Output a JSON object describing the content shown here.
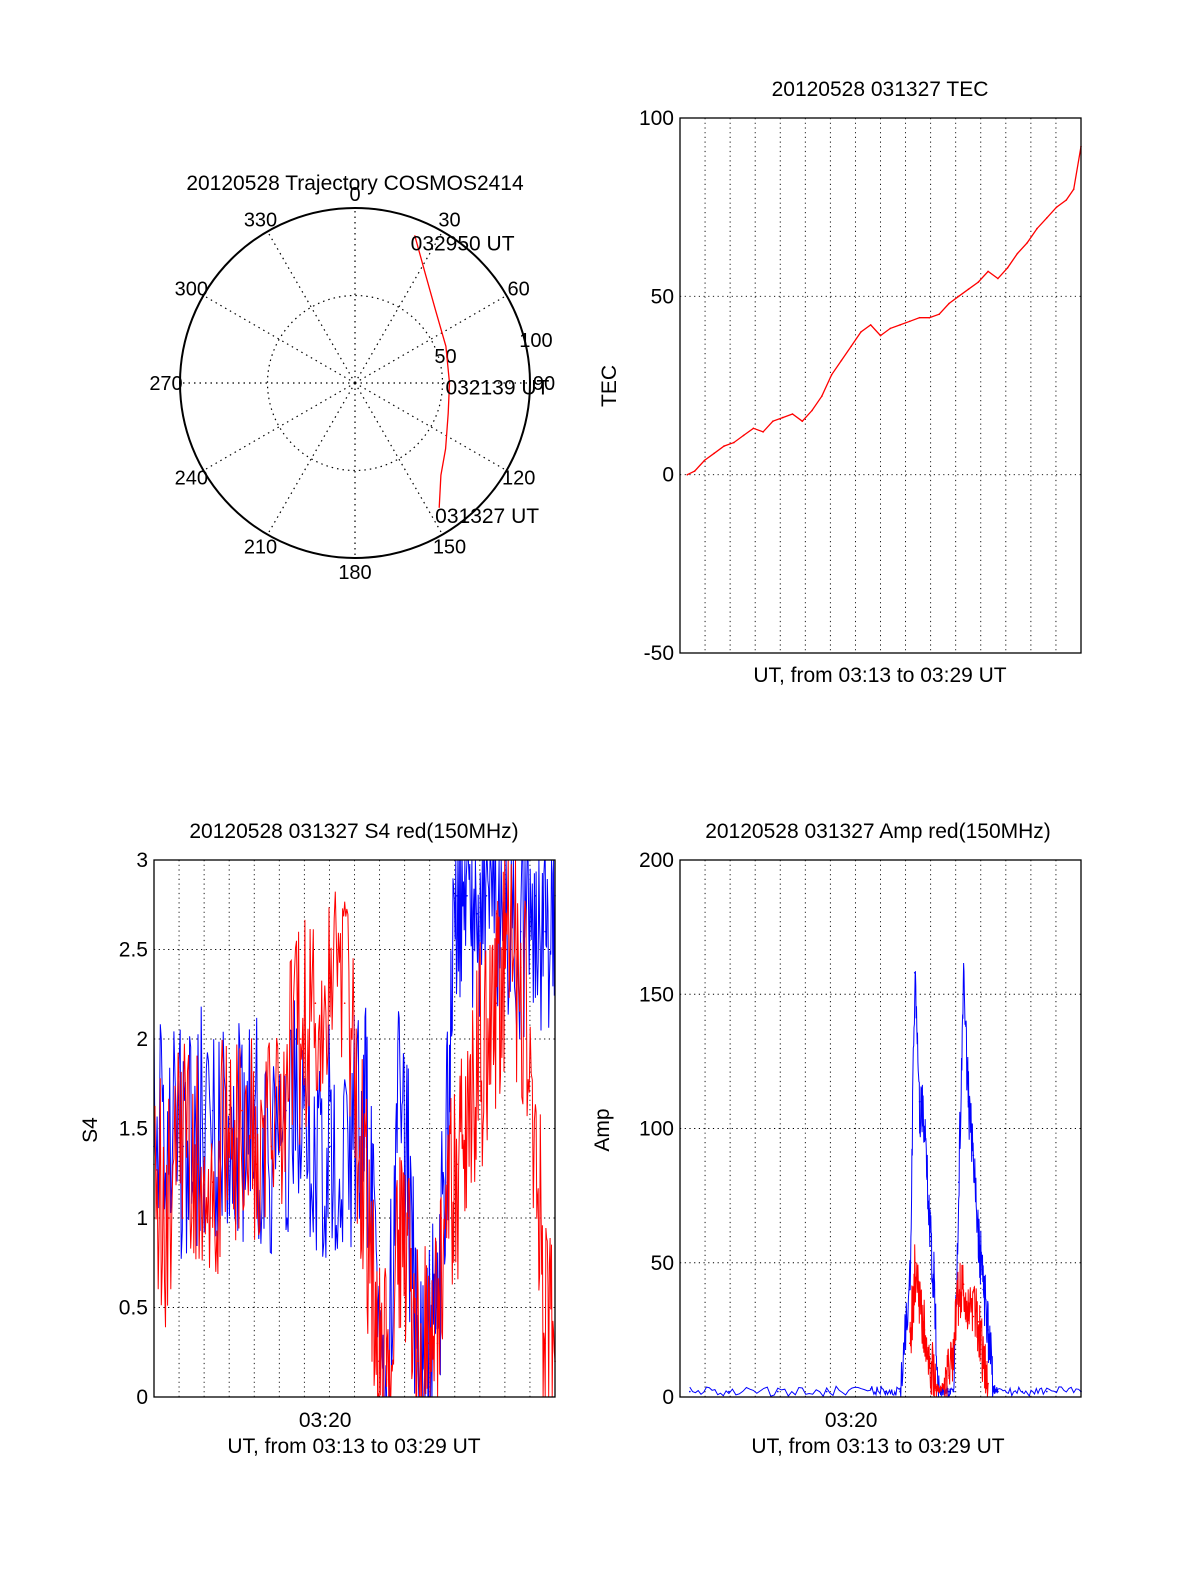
{
  "colors": {
    "red": "#ff0000",
    "blue": "#0000ff",
    "axis": "#000000",
    "grid": "#000000"
  },
  "chart_data": [
    {
      "type": "polar-trajectory",
      "title": "20120528 Trajectory COSMOS2414",
      "azimuth_labels": [
        "0",
        "30",
        "60",
        "90",
        "120",
        "150",
        "180",
        "210",
        "240",
        "270",
        "300",
        "330"
      ],
      "radius_labels": [
        "50",
        "100"
      ],
      "elevation_rings": [
        50,
        100
      ],
      "trajectory": [
        {
          "az": 22,
          "r": 91
        },
        {
          "az": 33,
          "r": 74
        },
        {
          "az": 48,
          "r": 62
        },
        {
          "az": 68,
          "r": 56
        },
        {
          "az": 90,
          "r": 54
        },
        {
          "az": 108,
          "r": 56
        },
        {
          "az": 126,
          "r": 64
        },
        {
          "az": 137,
          "r": 72
        },
        {
          "az": 146,
          "r": 86
        }
      ],
      "annotations": [
        {
          "text": "032950 UT",
          "az": 22,
          "r": 91
        },
        {
          "text": "032139 UT",
          "az": 88,
          "r": 54
        },
        {
          "text": "031327 UT",
          "az": 146,
          "r": 86
        }
      ]
    },
    {
      "type": "line",
      "title": "20120528 031327 TEC",
      "xlabel": "UT, from 03:13 to 03:29 UT",
      "ylabel": "TEC",
      "xlim": [
        0,
        16.4
      ],
      "ylim": [
        -50,
        100
      ],
      "yticks": [
        -50,
        0,
        50,
        100
      ],
      "xticks": [],
      "grid": true,
      "series": [
        {
          "color": "red",
          "x": [
            0.3,
            0.6,
            1.0,
            1.4,
            1.8,
            2.2,
            2.6,
            3.0,
            3.4,
            3.8,
            4.2,
            4.6,
            5.0,
            5.4,
            5.8,
            6.2,
            6.6,
            7.0,
            7.4,
            7.8,
            8.2,
            8.6,
            9.0,
            9.4,
            9.8,
            10.2,
            10.6,
            11.0,
            11.4,
            11.8,
            12.2,
            12.6,
            13.0,
            13.4,
            13.8,
            14.2,
            14.6,
            15.0,
            15.4,
            15.8,
            16.1,
            16.4
          ],
          "y": [
            0,
            1,
            4,
            6,
            8,
            9,
            11,
            13,
            12,
            15,
            16,
            17,
            15,
            18,
            22,
            28,
            32,
            36,
            40,
            42,
            39,
            41,
            42,
            43,
            44,
            44,
            45,
            48,
            50,
            52,
            54,
            57,
            55,
            58,
            62,
            65,
            69,
            72,
            75,
            77,
            80,
            92
          ]
        }
      ]
    },
    {
      "type": "line",
      "title": "20120528 031327 S4 red(150MHz)",
      "xlabel": "UT, from 03:13 to 03:29 UT",
      "ylabel": "S4",
      "xlim": [
        0,
        16.4
      ],
      "ylim": [
        0,
        3
      ],
      "yticks": [
        0,
        0.5,
        1,
        1.5,
        2,
        2.5,
        3
      ],
      "yticklabels": [
        "0",
        "0.5",
        "1",
        "1.5",
        "2",
        "2.5",
        "3"
      ],
      "xticks": [
        7
      ],
      "xticklabels": [
        "03:20"
      ],
      "grid": true,
      "series": [
        {
          "color": "blue",
          "x": [
            0,
            0.6,
            1.2,
            1.8,
            2.4,
            3.0,
            3.6,
            4.2,
            4.8,
            5.4,
            6.0,
            6.6,
            7.2,
            7.8,
            8.4,
            8.8,
            9.2,
            9.6,
            10.0,
            10.4,
            10.8,
            11.2,
            11.6,
            12.0,
            12.4,
            12.8,
            13.2,
            13.6,
            14.0,
            14.4,
            15.0,
            15.6,
            16.0,
            16.4
          ],
          "y": [
            1.4,
            1.5,
            1.4,
            1.5,
            1.6,
            1.4,
            1.5,
            1.5,
            1.4,
            1.6,
            1.5,
            1.5,
            1.4,
            1.5,
            1.5,
            1.5,
            0.2,
            0.2,
            1.5,
            1.2,
            0.2,
            0.3,
            0.3,
            1.5,
            2.8,
            2.8,
            2.7,
            2.8,
            2.7,
            2.8,
            2.6,
            2.8,
            2.6,
            2.8
          ]
        },
        {
          "color": "red",
          "x": [
            0,
            0.6,
            1.2,
            1.8,
            2.4,
            3.0,
            3.6,
            4.2,
            4.8,
            5.4,
            6.0,
            6.6,
            7.2,
            7.8,
            8.4,
            8.8,
            9.2,
            9.6,
            10.0,
            10.4,
            10.8,
            11.2,
            11.6,
            12.0,
            12.4,
            12.8,
            13.2,
            13.6,
            14.0,
            14.4,
            15.0,
            15.6,
            16.0,
            16.4
          ],
          "y": [
            1.3,
            1.0,
            1.5,
            1.3,
            1.2,
            1.4,
            1.6,
            1.3,
            1.4,
            1.8,
            2.0,
            2.2,
            2.5,
            2.2,
            1.5,
            0.9,
            0.2,
            0.1,
            0.9,
            1.0,
            0.2,
            0.3,
            0.3,
            1.2,
            1.3,
            1.5,
            1.8,
            2.0,
            2.2,
            2.5,
            2.4,
            1.6,
            0.3,
            0.2
          ]
        }
      ]
    },
    {
      "type": "line",
      "title": "20120528 031327 Amp red(150MHz)",
      "xlabel": "UT, from 03:13 to 03:29 UT",
      "ylabel": "Amp",
      "xlim": [
        0,
        16.4
      ],
      "ylim": [
        0,
        200
      ],
      "yticks": [
        0,
        50,
        100,
        150,
        200
      ],
      "xticks": [
        7
      ],
      "xticklabels": [
        "03:20"
      ],
      "grid": true,
      "series": [
        {
          "color": "blue",
          "x": [
            0.4,
            2.0,
            4.0,
            6.0,
            7.8,
            8.4,
            9.0,
            9.4,
            9.6,
            9.8,
            10.0,
            10.2,
            10.4,
            10.6,
            10.8,
            11.0,
            11.2,
            11.4,
            11.6,
            11.8,
            12.0,
            12.2,
            12.4,
            12.6,
            12.8,
            13.0,
            14.0,
            15.0,
            16.4
          ],
          "y": [
            2,
            2,
            2,
            2,
            3,
            2,
            2,
            40,
            158,
            110,
            100,
            70,
            40,
            2,
            2,
            2,
            2,
            80,
            150,
            110,
            90,
            60,
            40,
            25,
            3,
            2,
            2,
            2,
            2
          ]
        },
        {
          "color": "red",
          "x": [
            9.4,
            9.6,
            9.8,
            10.0,
            10.2,
            10.4,
            10.6,
            10.8,
            11.0,
            11.2,
            11.4,
            11.6,
            11.8,
            12.0,
            12.2,
            12.4,
            12.6
          ],
          "y": [
            20,
            45,
            35,
            25,
            15,
            5,
            3,
            4,
            8,
            20,
            38,
            42,
            35,
            30,
            28,
            15,
            5
          ]
        }
      ]
    }
  ]
}
